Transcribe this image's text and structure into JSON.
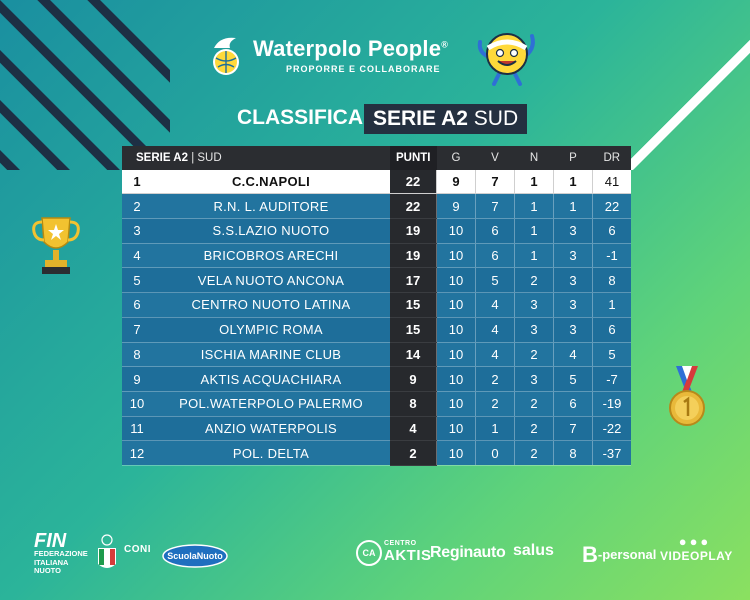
{
  "brand": {
    "name": "Waterpolo People",
    "registered": "®",
    "tagline": "PROPORRE E COLLABORARE"
  },
  "title": {
    "prefix": "CLASSIFICA",
    "league_bold": "SERIE A2",
    "league_region": "SUD"
  },
  "table": {
    "header": {
      "league": "SERIE A2",
      "region": "| SUD",
      "points": "PUNTI",
      "played": "G",
      "won": "V",
      "drawn": "N",
      "lost": "P",
      "goal_diff": "DR"
    },
    "rows": [
      {
        "pos": "1",
        "team": "C.C.NAPOLI",
        "pts": "22",
        "g": "9",
        "v": "7",
        "n": "1",
        "p": "1",
        "dr": "41"
      },
      {
        "pos": "2",
        "team": "R.N. L. AUDITORE",
        "pts": "22",
        "g": "9",
        "v": "7",
        "n": "1",
        "p": "1",
        "dr": "22"
      },
      {
        "pos": "3",
        "team": "S.S.LAZIO NUOTO",
        "pts": "19",
        "g": "10",
        "v": "6",
        "n": "1",
        "p": "3",
        "dr": "6"
      },
      {
        "pos": "4",
        "team": "BRICOBROS ARECHI",
        "pts": "19",
        "g": "10",
        "v": "6",
        "n": "1",
        "p": "3",
        "dr": "-1"
      },
      {
        "pos": "5",
        "team": "VELA NUOTO ANCONA",
        "pts": "17",
        "g": "10",
        "v": "5",
        "n": "2",
        "p": "3",
        "dr": "8"
      },
      {
        "pos": "6",
        "team": "CENTRO NUOTO LATINA",
        "pts": "15",
        "g": "10",
        "v": "4",
        "n": "3",
        "p": "3",
        "dr": "1"
      },
      {
        "pos": "7",
        "team": "OLYMPIC ROMA",
        "pts": "15",
        "g": "10",
        "v": "4",
        "n": "3",
        "p": "3",
        "dr": "6"
      },
      {
        "pos": "8",
        "team": "ISCHIA MARINE CLUB",
        "pts": "14",
        "g": "10",
        "v": "4",
        "n": "2",
        "p": "4",
        "dr": "5"
      },
      {
        "pos": "9",
        "team": "AKTIS ACQUACHIARA",
        "pts": "9",
        "g": "10",
        "v": "2",
        "n": "3",
        "p": "5",
        "dr": "-7"
      },
      {
        "pos": "10",
        "team": "POL.WATERPOLO PALERMO",
        "pts": "8",
        "g": "10",
        "v": "2",
        "n": "2",
        "p": "6",
        "dr": "-19"
      },
      {
        "pos": "11",
        "team": "ANZIO WATERPOLIS",
        "pts": "4",
        "g": "10",
        "v": "1",
        "n": "2",
        "p": "7",
        "dr": "-22"
      },
      {
        "pos": "12",
        "team": "POL. DELTA",
        "pts": "2",
        "g": "10",
        "v": "0",
        "n": "2",
        "p": "8",
        "dr": "-37"
      }
    ]
  },
  "decorations": {
    "trophy_icon": "trophy-icon",
    "medal_icon": "gold-medal-icon",
    "mascot_icon": "waterpolo-ball-mascot-icon"
  },
  "footer": {
    "fin_big": "FIN",
    "fin_line1": "FEDERAZIONE",
    "fin_line2": "ITALIANA",
    "fin_line3": "NUOTO",
    "coni": "CONI",
    "scuola": "ScuolaNuoto",
    "aktis_small": "CENTRO",
    "aktis_big": "AKTIS",
    "aktis_mark": "CA",
    "reginauto": "Reginauto",
    "salus": "salus",
    "bpersonal_b": "B",
    "bpersonal_rest": "-personal",
    "videoplay": "VIDEOPLAY"
  },
  "colors": {
    "background_start": "#1a8fa0",
    "background_end": "#8be060",
    "table_row": "#1e6e9a",
    "table_header": "#2b2d31",
    "points_column": "#27292d",
    "leader_row": "#ffffff"
  }
}
